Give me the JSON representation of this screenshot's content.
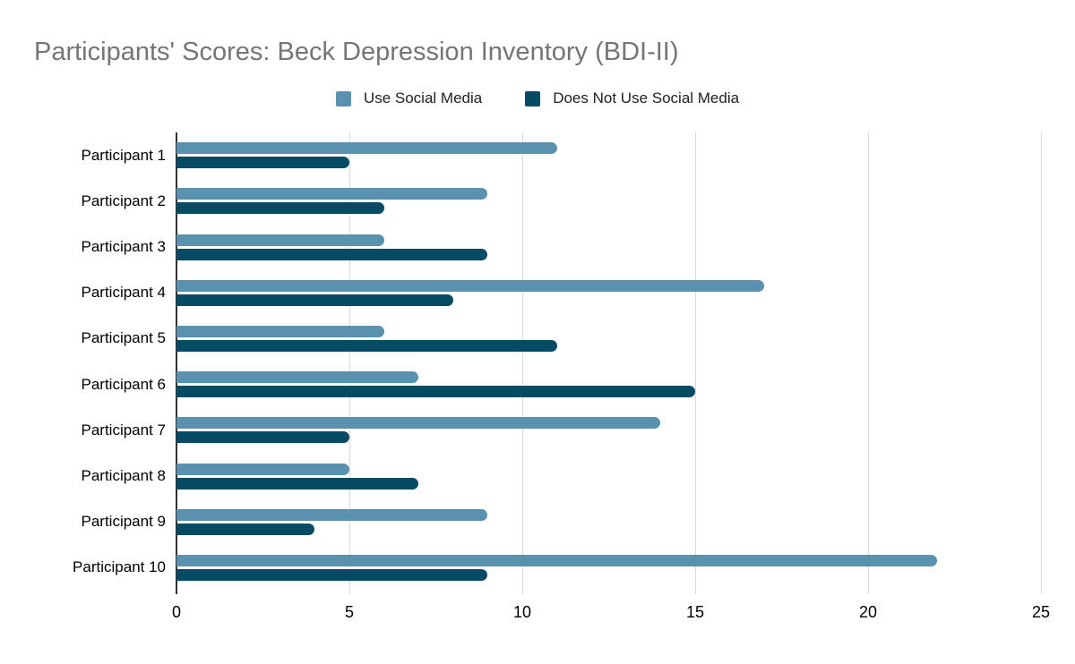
{
  "title": "Participants' Scores: Beck Depression Inventory (BDI-II)",
  "colors": {
    "title_text": "#757575",
    "axis_line": "#333333",
    "gridline": "#d9d9d9",
    "tick_text": "#000000",
    "series_use": "#5a91af",
    "series_not_use": "#074a64"
  },
  "chart_data": {
    "type": "bar",
    "orientation": "horizontal",
    "title": "Participants' Scores: Beck Depression Inventory (BDI-II)",
    "categories": [
      "Participant 1",
      "Participant 2",
      "Participant 3",
      "Participant 4",
      "Participant 5",
      "Participant 6",
      "Participant 7",
      "Participant 8",
      "Participant 9",
      "Participant 10"
    ],
    "series": [
      {
        "name": "Use Social Media",
        "color": "#5a91af",
        "values": [
          11,
          9,
          6,
          17,
          6,
          7,
          14,
          5,
          9,
          22
        ]
      },
      {
        "name": "Does Not Use Social Media",
        "color": "#074a64",
        "values": [
          5,
          6,
          9,
          8,
          11,
          15,
          5,
          7,
          4,
          9
        ]
      }
    ],
    "xlabel": "",
    "ylabel": "",
    "xlim": [
      0,
      25
    ],
    "x_ticks": [
      0,
      5,
      10,
      15,
      20,
      25
    ],
    "grid": true,
    "legend_position": "top"
  }
}
